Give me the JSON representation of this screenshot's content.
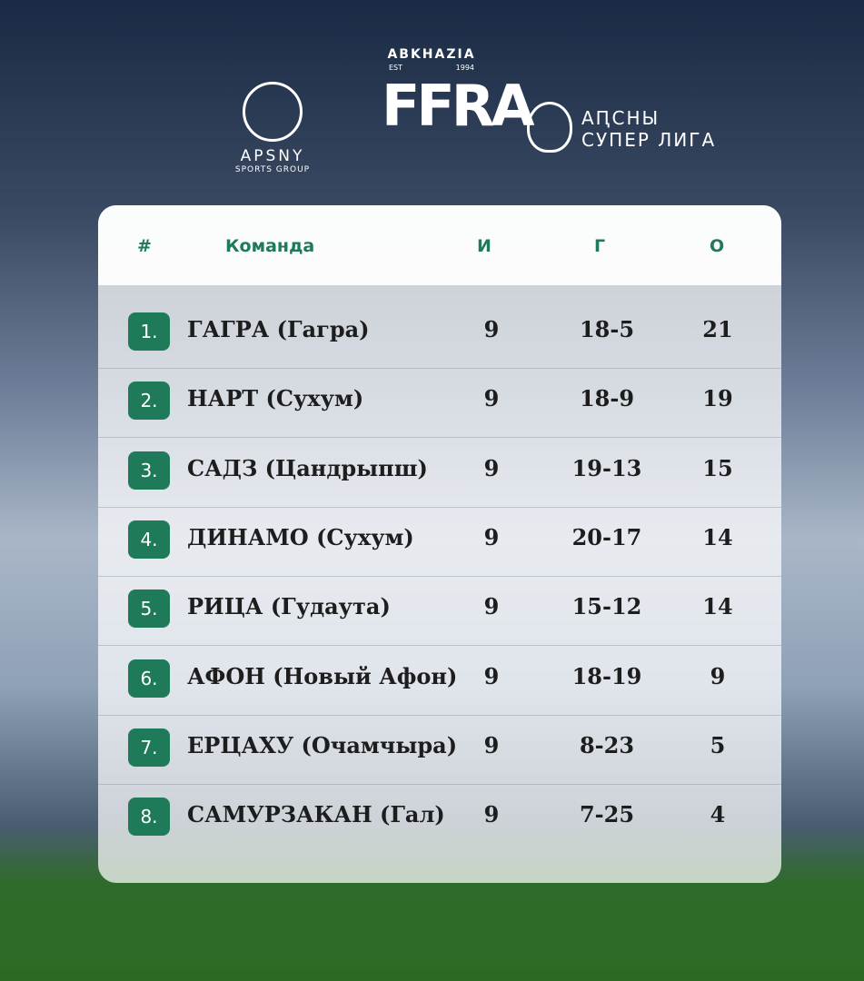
{
  "logos": {
    "left": {
      "name": "APSNY",
      "sub": "SPORTS GROUP"
    },
    "center": {
      "top": "ABKHAZIA",
      "est": "EST",
      "year": "1994",
      "name": "FFRA"
    },
    "right": {
      "line1": "АԤСНЫ",
      "line2": "СУПЕР ЛИГА"
    }
  },
  "table": {
    "header": [
      "#",
      "Команда",
      "И",
      "Г",
      "О"
    ],
    "rows": [
      [
        "1.",
        "ГАГРА (Гагра)",
        9,
        "18-5",
        21
      ],
      [
        "2.",
        "НАРТ (Сухум)",
        9,
        "18-9",
        19
      ],
      [
        "3.",
        "САДЗ (Цандрыпш)",
        9,
        "19-13",
        15
      ],
      [
        "4.",
        "ДИНАМО (Сухум)",
        9,
        "20-17",
        14
      ],
      [
        "5.",
        "РИЦА (Гудаута)",
        9,
        "15-12",
        14
      ],
      [
        "6.",
        "АФОН (Новый Афон)",
        9,
        "18-19",
        9
      ],
      [
        "7.",
        "ЕРЦАХУ (Очамчыра)",
        9,
        "8-23",
        5
      ],
      [
        "8.",
        "САМУРЗАКАН (Гал)",
        9,
        "7-25",
        4
      ]
    ]
  }
}
